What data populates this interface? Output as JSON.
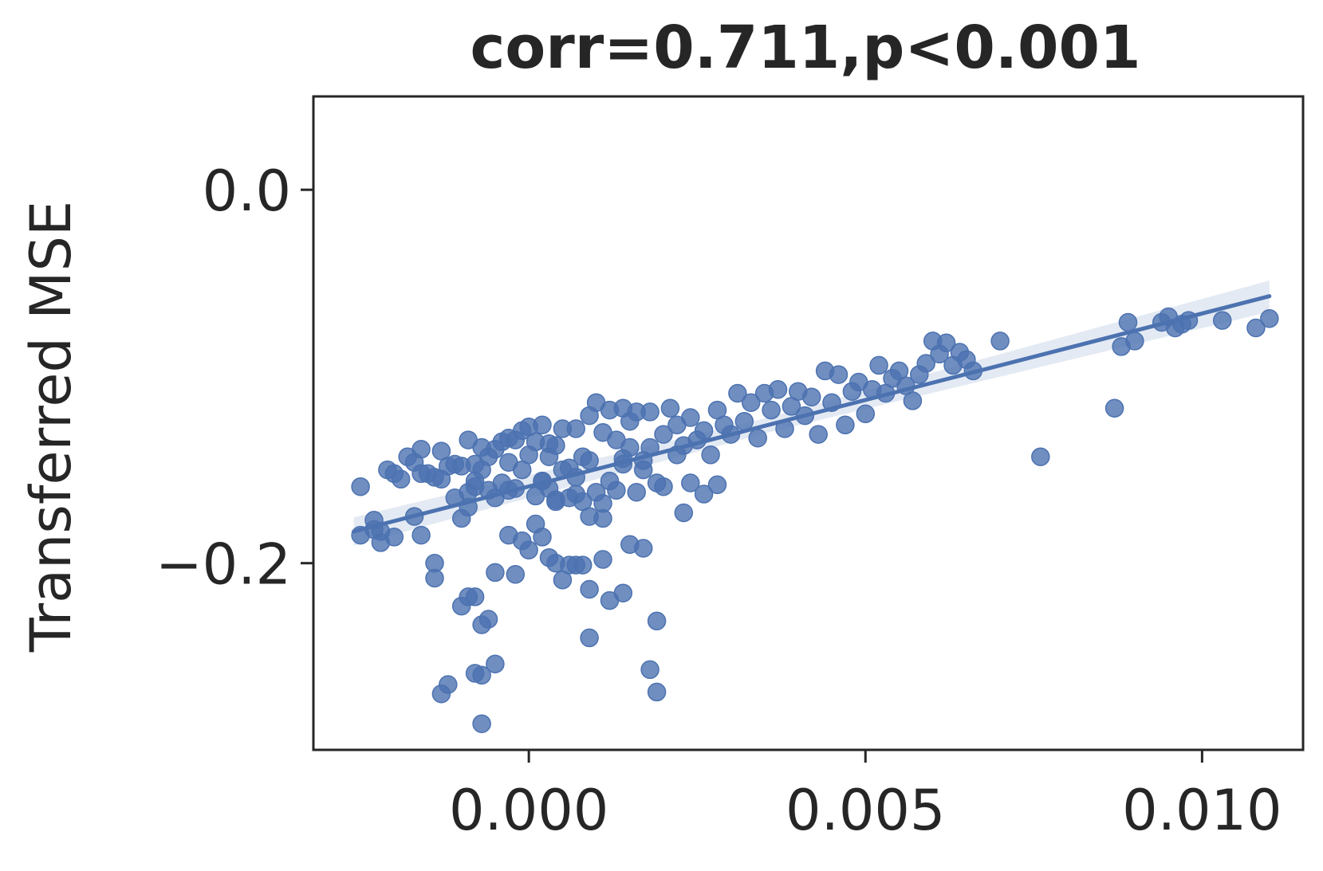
{
  "chart_data": {
    "type": "scatter",
    "title": "corr=0.711,p<0.001",
    "xlabel": "",
    "ylabel": "Transferred MSE",
    "xlim": [
      -0.0032,
      0.0115
    ],
    "ylim": [
      -0.3,
      0.05
    ],
    "xticks": [
      0.0,
      0.005,
      0.01
    ],
    "xtick_labels": [
      "0.000",
      "0.005",
      "0.010"
    ],
    "yticks": [
      0.0,
      -0.2
    ],
    "ytick_labels": [
      "0.0",
      "−0.2"
    ],
    "grid": false,
    "color": "#4c72b0",
    "regression": {
      "x": [
        -0.0026,
        0.011
      ],
      "y": [
        -0.183,
        -0.057
      ],
      "ci_halfwidth": [
        0.004,
        0.008
      ]
    },
    "points": [
      [
        -0.0025,
        -0.159
      ],
      [
        -0.0025,
        -0.185
      ],
      [
        -0.0023,
        -0.177
      ],
      [
        -0.0023,
        -0.182
      ],
      [
        -0.0022,
        -0.189
      ],
      [
        -0.0022,
        -0.183
      ],
      [
        -0.0021,
        -0.15
      ],
      [
        -0.002,
        -0.186
      ],
      [
        -0.002,
        -0.152
      ],
      [
        -0.0019,
        -0.155
      ],
      [
        -0.0018,
        -0.143
      ],
      [
        -0.0017,
        -0.146
      ],
      [
        -0.0016,
        -0.152
      ],
      [
        -0.0016,
        -0.139
      ],
      [
        -0.0015,
        -0.152
      ],
      [
        -0.0017,
        -0.175
      ],
      [
        -0.0016,
        -0.185
      ],
      [
        -0.0014,
        -0.154
      ],
      [
        -0.0013,
        -0.14
      ],
      [
        -0.0013,
        -0.155
      ],
      [
        -0.0012,
        -0.148
      ],
      [
        -0.0011,
        -0.147
      ],
      [
        -0.0011,
        -0.165
      ],
      [
        -0.001,
        -0.176
      ],
      [
        -0.001,
        -0.148
      ],
      [
        -0.0009,
        -0.134
      ],
      [
        -0.0009,
        -0.162
      ],
      [
        -0.0009,
        -0.17
      ],
      [
        -0.0008,
        -0.156
      ],
      [
        -0.0008,
        -0.147
      ],
      [
        -0.0007,
        -0.138
      ],
      [
        -0.0007,
        -0.15
      ],
      [
        -0.0006,
        -0.143
      ],
      [
        -0.0006,
        -0.161
      ],
      [
        -0.0005,
        -0.139
      ],
      [
        -0.0005,
        -0.165
      ],
      [
        -0.0004,
        -0.157
      ],
      [
        -0.0004,
        -0.135
      ],
      [
        -0.0003,
        -0.133
      ],
      [
        -0.0003,
        -0.146
      ],
      [
        -0.0002,
        -0.16
      ],
      [
        -0.0002,
        -0.134
      ],
      [
        -0.0001,
        -0.129
      ],
      [
        -0.0001,
        -0.15
      ],
      [
        0.0,
        -0.127
      ],
      [
        0.0,
        -0.142
      ],
      [
        0.0001,
        -0.164
      ],
      [
        0.0001,
        -0.135
      ],
      [
        0.0002,
        -0.126
      ],
      [
        0.0002,
        -0.156
      ],
      [
        0.0003,
        -0.143
      ],
      [
        0.0003,
        -0.16
      ],
      [
        0.0004,
        -0.137
      ],
      [
        0.0004,
        -0.166
      ],
      [
        0.0005,
        -0.128
      ],
      [
        0.0005,
        -0.15
      ],
      [
        0.0006,
        -0.165
      ],
      [
        0.0007,
        -0.154
      ],
      [
        0.0007,
        -0.128
      ],
      [
        0.0008,
        -0.143
      ],
      [
        0.0008,
        -0.167
      ],
      [
        0.0009,
        -0.121
      ],
      [
        0.0009,
        -0.145
      ],
      [
        0.001,
        -0.114
      ],
      [
        0.001,
        -0.162
      ],
      [
        0.0011,
        -0.13
      ],
      [
        0.0011,
        -0.168
      ],
      [
        0.0012,
        -0.156
      ],
      [
        0.0012,
        -0.118
      ],
      [
        0.0013,
        -0.134
      ],
      [
        0.0013,
        -0.161
      ],
      [
        0.0014,
        -0.117
      ],
      [
        0.0014,
        -0.147
      ],
      [
        0.0015,
        -0.138
      ],
      [
        0.0015,
        -0.124
      ],
      [
        0.0016,
        -0.162
      ],
      [
        0.0016,
        -0.119
      ],
      [
        0.0017,
        -0.145
      ],
      [
        0.0018,
        -0.119
      ],
      [
        0.0018,
        -0.138
      ],
      [
        0.0019,
        -0.157
      ],
      [
        0.002,
        -0.131
      ],
      [
        0.0021,
        -0.117
      ],
      [
        0.0022,
        -0.142
      ],
      [
        0.0022,
        -0.126
      ],
      [
        0.0023,
        -0.137
      ],
      [
        0.0024,
        -0.122
      ],
      [
        0.0025,
        -0.134
      ],
      [
        0.0026,
        -0.129
      ],
      [
        0.0027,
        -0.142
      ],
      [
        0.0028,
        -0.118
      ],
      [
        0.0029,
        -0.126
      ],
      [
        0.003,
        -0.131
      ],
      [
        0.0031,
        -0.109
      ],
      [
        0.0032,
        -0.124
      ],
      [
        0.0033,
        -0.114
      ],
      [
        0.0034,
        -0.133
      ],
      [
        0.0035,
        -0.109
      ],
      [
        0.0036,
        -0.118
      ],
      [
        0.0037,
        -0.107
      ],
      [
        0.0038,
        -0.128
      ],
      [
        0.0039,
        -0.116
      ],
      [
        0.004,
        -0.108
      ],
      [
        0.0041,
        -0.121
      ],
      [
        0.0042,
        -0.111
      ],
      [
        0.0043,
        -0.131
      ],
      [
        0.0044,
        -0.097
      ],
      [
        0.0045,
        -0.114
      ],
      [
        0.0046,
        -0.099
      ],
      [
        0.0047,
        -0.126
      ],
      [
        0.0048,
        -0.108
      ],
      [
        0.0049,
        -0.103
      ],
      [
        0.005,
        -0.12
      ],
      [
        0.0051,
        -0.107
      ],
      [
        0.0052,
        -0.094
      ],
      [
        0.0053,
        -0.109
      ],
      [
        0.0054,
        -0.101
      ],
      [
        0.0055,
        -0.097
      ],
      [
        0.0056,
        -0.105
      ],
      [
        0.0057,
        -0.113
      ],
      [
        0.0058,
        -0.099
      ],
      [
        0.0059,
        -0.093
      ],
      [
        0.006,
        -0.081
      ],
      [
        0.0061,
        -0.088
      ],
      [
        0.0062,
        -0.082
      ],
      [
        0.0063,
        -0.094
      ],
      [
        0.0064,
        -0.087
      ],
      [
        0.0065,
        -0.091
      ],
      [
        0.0066,
        -0.097
      ],
      [
        0.007,
        -0.081
      ],
      [
        0.0087,
        -0.117
      ],
      [
        0.0088,
        -0.084
      ],
      [
        0.0089,
        -0.071
      ],
      [
        0.009,
        -0.081
      ],
      [
        0.0094,
        -0.071
      ],
      [
        0.0095,
        -0.068
      ],
      [
        0.0096,
        -0.074
      ],
      [
        0.0097,
        -0.072
      ],
      [
        0.0098,
        -0.07
      ],
      [
        0.0103,
        -0.07
      ],
      [
        0.0108,
        -0.074
      ],
      [
        0.011,
        -0.069
      ],
      [
        0.0076,
        -0.143
      ],
      [
        0.0004,
        -0.167
      ],
      [
        0.0007,
        -0.163
      ],
      [
        0.0017,
        -0.15
      ],
      [
        0.0014,
        -0.144
      ],
      [
        -0.0008,
        -0.159
      ],
      [
        -0.0003,
        -0.161
      ],
      [
        0.0002,
        -0.156
      ],
      [
        0.0006,
        -0.149
      ],
      [
        0.0003,
        -0.136
      ],
      [
        -0.0001,
        -0.188
      ],
      [
        0.0,
        -0.193
      ],
      [
        0.0002,
        -0.186
      ],
      [
        0.0003,
        -0.197
      ],
      [
        0.0004,
        -0.2
      ],
      [
        0.0006,
        -0.201
      ],
      [
        0.0007,
        -0.201
      ],
      [
        0.0008,
        -0.201
      ],
      [
        0.0009,
        -0.175
      ],
      [
        0.0009,
        -0.214
      ],
      [
        0.0011,
        -0.176
      ],
      [
        0.0012,
        -0.22
      ],
      [
        -0.0003,
        -0.185
      ],
      [
        -0.0005,
        -0.205
      ],
      [
        -0.0006,
        -0.23
      ],
      [
        -0.0007,
        -0.233
      ],
      [
        -0.0008,
        -0.218
      ],
      [
        -0.0009,
        -0.218
      ],
      [
        -0.001,
        -0.223
      ],
      [
        -0.0014,
        -0.2
      ],
      [
        -0.0014,
        -0.208
      ],
      [
        -0.0012,
        -0.265
      ],
      [
        -0.0013,
        -0.27
      ],
      [
        -0.0008,
        -0.259
      ],
      [
        -0.0007,
        -0.26
      ],
      [
        -0.0005,
        -0.254
      ],
      [
        -0.0002,
        -0.206
      ],
      [
        0.0005,
        -0.209
      ],
      [
        0.0014,
        -0.216
      ],
      [
        0.0015,
        -0.19
      ],
      [
        0.0017,
        -0.192
      ],
      [
        0.0019,
        -0.269
      ],
      [
        0.0019,
        -0.231
      ],
      [
        0.0001,
        -0.179
      ],
      [
        0.0011,
        -0.198
      ],
      [
        0.002,
        -0.159
      ],
      [
        0.0023,
        -0.173
      ],
      [
        0.0026,
        -0.163
      ],
      [
        0.0024,
        -0.157
      ],
      [
        0.0028,
        -0.158
      ],
      [
        -0.0007,
        -0.286
      ],
      [
        0.0009,
        -0.24
      ],
      [
        0.0018,
        -0.257
      ]
    ]
  }
}
